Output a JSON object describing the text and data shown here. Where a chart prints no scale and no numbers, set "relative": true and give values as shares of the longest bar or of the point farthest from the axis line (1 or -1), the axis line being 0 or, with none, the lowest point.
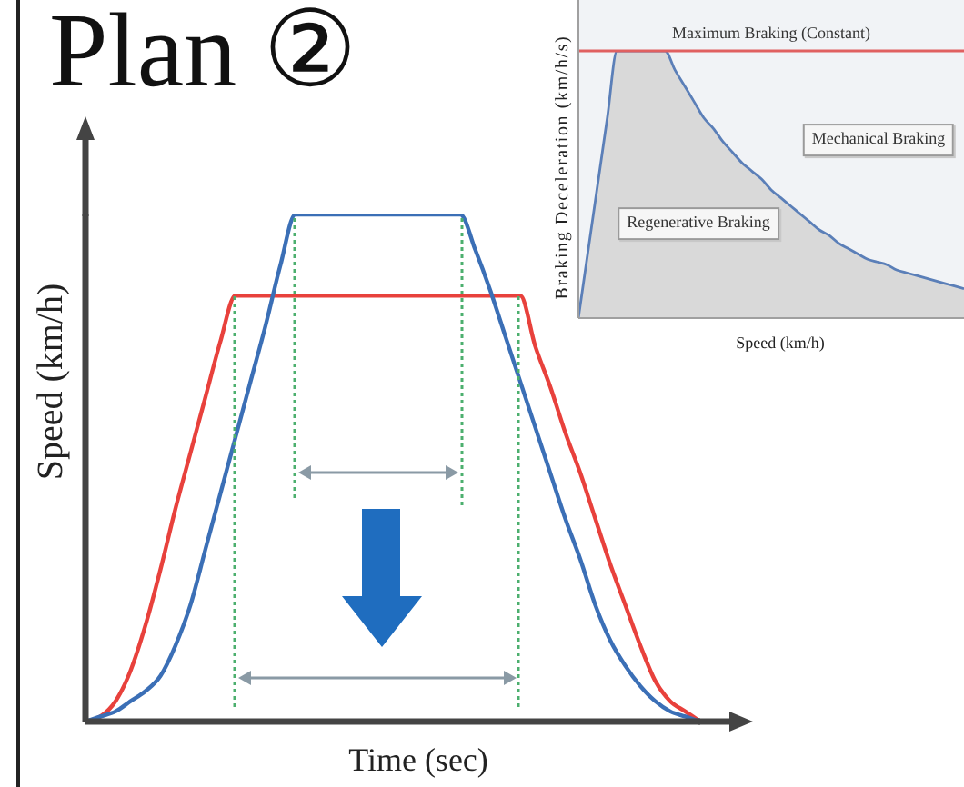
{
  "chart_data": [
    {
      "type": "line",
      "title": "Plan ②",
      "xlabel": "Time (sec)",
      "ylabel": "Speed (km/h)",
      "relative": true,
      "marker": "none",
      "line_style": "solid",
      "categories": [
        null,
        null,
        null,
        null,
        null,
        null,
        null,
        null,
        null,
        null,
        null,
        null,
        null,
        null,
        null,
        null,
        null,
        null,
        null,
        null,
        null,
        null,
        null,
        null,
        null,
        null,
        null,
        null,
        null,
        null,
        null,
        null,
        null,
        null,
        null,
        null,
        null,
        null,
        null,
        null,
        null,
        null
      ],
      "series": [
        {
          "color": "#e8413c",
          "values": [
            0,
            0.01,
            0.04,
            0.1,
            0.19,
            0.3,
            0.42,
            0.53,
            0.64,
            0.75,
            0.84,
            0.84,
            0.84,
            0.84,
            0.84,
            0.84,
            0.84,
            0.84,
            0.84,
            0.84,
            0.84,
            0.84,
            0.84,
            0.84,
            0.84,
            0.84,
            0.84,
            0.84,
            0.84,
            0.84,
            0.74,
            0.66,
            0.57,
            0.49,
            0.4,
            0.31,
            0.23,
            0.15,
            0.08,
            0.04,
            0.02,
            0
          ]
        },
        {
          "color": "#3b6fb6",
          "values": [
            0,
            0.01,
            0.02,
            0.04,
            0.06,
            0.09,
            0.15,
            0.23,
            0.34,
            0.45,
            0.56,
            0.67,
            0.78,
            0.9,
            1,
            1,
            1,
            1,
            1,
            1,
            1,
            1,
            1,
            1,
            1,
            1,
            0.93,
            0.85,
            0.76,
            0.67,
            0.58,
            0.49,
            0.4,
            0.32,
            0.23,
            0.16,
            0.11,
            0.07,
            0.04,
            0.02,
            0.01,
            0
          ]
        }
      ]
    },
    {
      "type": "area",
      "xlabel": "Speed (km/h)",
      "ylabel": "Braking Deceleration (km/h/s)",
      "relative": true,
      "marker": "none",
      "categories": [
        null,
        null,
        null,
        null,
        null,
        null,
        null,
        null,
        null,
        null,
        null,
        null,
        null,
        null,
        null,
        null,
        null,
        null,
        null,
        null,
        null,
        null,
        null,
        null,
        null,
        null,
        null,
        null,
        null,
        null,
        null,
        null,
        null,
        null,
        null,
        null,
        null,
        null,
        null,
        null,
        null
      ],
      "series": [
        {
          "color": "#5b7fb8",
          "values": [
            0,
            0.25,
            0.5,
            0.75,
            1,
            1,
            1,
            1,
            1,
            1,
            0.93,
            0.87,
            0.81,
            0.75,
            0.71,
            0.66,
            0.62,
            0.58,
            0.55,
            0.52,
            0.48,
            0.45,
            0.42,
            0.39,
            0.36,
            0.33,
            0.31,
            0.28,
            0.26,
            0.24,
            0.22,
            0.21,
            0.2,
            0.18,
            0.17,
            0.16,
            0.15,
            0.14,
            0.13,
            0.12,
            0.11
          ]
        }
      ],
      "ref_lines": [
        {
          "axis": "y",
          "value": 1,
          "label": "Maximum Braking (Constant)",
          "color": "#e06060"
        }
      ],
      "annotations": [
        "Mechanical Braking",
        "Regenerative Braking"
      ]
    }
  ]
}
